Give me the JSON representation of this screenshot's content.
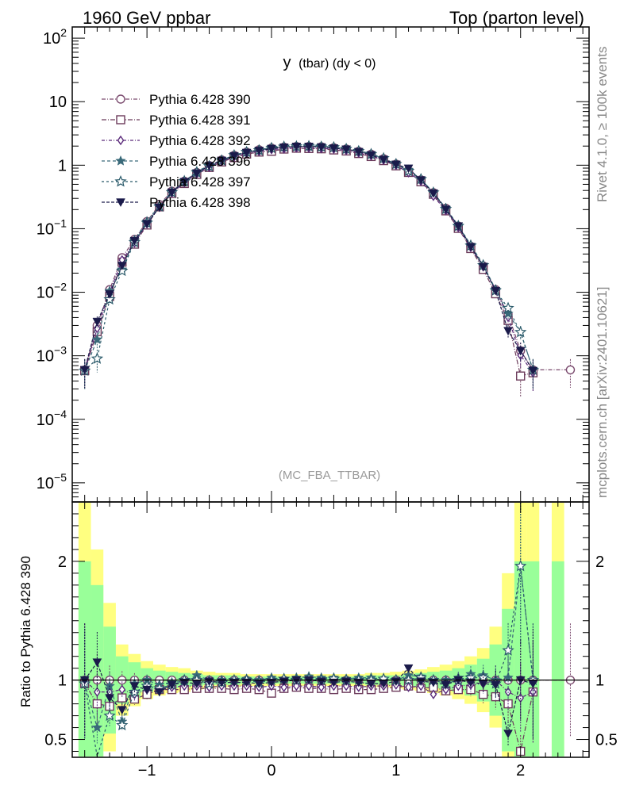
{
  "header": {
    "left_label": "1960 GeV ppbar",
    "right_label": "Top (parton level)"
  },
  "side_labels": {
    "rivet": "Rivet 4.1.0, ≥ 100k events",
    "source": "mcplots.cern.ch [arXiv:2401.10621]"
  },
  "chart_data": {
    "type": "line",
    "title": "y (tbar) (dy < 0)",
    "title_main": "y",
    "title_sub": "(tbar) (dy < 0)",
    "watermark": "(MC_FBA_TTBAR)",
    "ylabel_ratio": "Ratio to Pythia 6.428 390",
    "xlim": [
      -1.6,
      2.55
    ],
    "ylim": [
      5e-06,
      150
    ],
    "ratio_ylim": [
      0.35,
      2.5
    ],
    "yscale": "log",
    "xticks": [
      {
        "value": -1,
        "label": "−1"
      },
      {
        "value": 0,
        "label": "0"
      },
      {
        "value": 1,
        "label": "1"
      },
      {
        "value": 2,
        "label": "2"
      }
    ],
    "yticks": [
      {
        "value": 100,
        "base": "10",
        "exp": "2"
      },
      {
        "value": 10,
        "base": "10",
        "exp": ""
      },
      {
        "value": 1,
        "base": "1",
        "exp": ""
      },
      {
        "value": 0.1,
        "base": "10",
        "exp": "−1"
      },
      {
        "value": 0.01,
        "base": "10",
        "exp": "−2"
      },
      {
        "value": 0.001,
        "base": "10",
        "exp": "−3"
      },
      {
        "value": 0.0001,
        "base": "10",
        "exp": "−4"
      },
      {
        "value": 1e-05,
        "base": "10",
        "exp": "−5"
      }
    ],
    "ratio_yticks": [
      {
        "value": 2,
        "label": "2"
      },
      {
        "value": 1,
        "label": "1"
      },
      {
        "value": 0.5,
        "label": "0.5"
      }
    ],
    "x": [
      -1.5,
      -1.4,
      -1.3,
      -1.2,
      -1.1,
      -1.0,
      -0.9,
      -0.8,
      -0.7,
      -0.6,
      -0.5,
      -0.4,
      -0.3,
      -0.2,
      -0.1,
      0.0,
      0.1,
      0.2,
      0.3,
      0.4,
      0.5,
      0.6,
      0.7,
      0.8,
      0.9,
      1.0,
      1.1,
      1.2,
      1.3,
      1.4,
      1.5,
      1.6,
      1.7,
      1.8,
      1.9,
      2.0,
      2.1,
      2.2,
      2.3,
      2.4
    ],
    "reference_shape": [
      0.0006,
      0.003,
      0.011,
      0.035,
      0.068,
      0.13,
      0.24,
      0.39,
      0.56,
      0.77,
      0.99,
      1.21,
      1.43,
      1.61,
      1.75,
      1.86,
      1.93,
      1.97,
      1.97,
      1.95,
      1.89,
      1.8,
      1.66,
      1.49,
      1.27,
      1.04,
      0.81,
      0.59,
      0.37,
      0.21,
      0.11,
      0.053,
      0.026,
      0.011,
      0.0045,
      0.0012,
      0.0006,
      0.0006,
      0.0006,
      0.0006
    ],
    "uncertainty_bands": {
      "inner_color": "#99ff99",
      "outer_color": "#ffff80",
      "x": [
        -1.5,
        -1.4,
        -1.3,
        -1.2,
        -1.1,
        -1.0,
        -0.9,
        -0.8,
        -0.7,
        -0.6,
        -0.5,
        -0.4,
        -0.3,
        -0.2,
        -0.1,
        0.0,
        0.1,
        0.2,
        0.3,
        0.4,
        0.5,
        0.6,
        0.7,
        0.8,
        0.9,
        1.0,
        1.1,
        1.2,
        1.3,
        1.4,
        1.5,
        1.6,
        1.7,
        1.8,
        1.9,
        2.0,
        2.1,
        2.2,
        2.3,
        2.4
      ],
      "inner": [
        [
          0.25,
          2.0
        ],
        [
          0.3,
          1.8
        ],
        [
          0.55,
          1.45
        ],
        [
          0.8,
          1.2
        ],
        [
          0.85,
          1.15
        ],
        [
          0.9,
          1.1
        ],
        [
          0.92,
          1.08
        ],
        [
          0.93,
          1.07
        ],
        [
          0.94,
          1.06
        ],
        [
          0.95,
          1.05
        ],
        [
          0.96,
          1.04
        ],
        [
          0.96,
          1.04
        ],
        [
          0.96,
          1.04
        ],
        [
          0.97,
          1.03
        ],
        [
          0.97,
          1.03
        ],
        [
          0.97,
          1.03
        ],
        [
          0.97,
          1.03
        ],
        [
          0.97,
          1.03
        ],
        [
          0.97,
          1.03
        ],
        [
          0.97,
          1.03
        ],
        [
          0.97,
          1.03
        ],
        [
          0.97,
          1.03
        ],
        [
          0.97,
          1.03
        ],
        [
          0.96,
          1.04
        ],
        [
          0.96,
          1.04
        ],
        [
          0.96,
          1.04
        ],
        [
          0.95,
          1.05
        ],
        [
          0.94,
          1.06
        ],
        [
          0.93,
          1.07
        ],
        [
          0.92,
          1.08
        ],
        [
          0.9,
          1.1
        ],
        [
          0.87,
          1.13
        ],
        [
          0.82,
          1.18
        ],
        [
          0.7,
          1.3
        ],
        [
          0.4,
          1.6
        ],
        [
          0.25,
          2.0
        ],
        [
          0.25,
          2.0
        ],
        null,
        [
          0.25,
          2.0
        ],
        null
      ],
      "outer": [
        [
          0.25,
          2.5
        ],
        [
          0.25,
          2.1
        ],
        [
          0.4,
          1.65
        ],
        [
          0.7,
          1.3
        ],
        [
          0.78,
          1.22
        ],
        [
          0.84,
          1.16
        ],
        [
          0.87,
          1.13
        ],
        [
          0.89,
          1.11
        ],
        [
          0.9,
          1.1
        ],
        [
          0.92,
          1.08
        ],
        [
          0.93,
          1.07
        ],
        [
          0.94,
          1.06
        ],
        [
          0.94,
          1.06
        ],
        [
          0.95,
          1.05
        ],
        [
          0.95,
          1.05
        ],
        [
          0.95,
          1.05
        ],
        [
          0.95,
          1.05
        ],
        [
          0.95,
          1.05
        ],
        [
          0.95,
          1.05
        ],
        [
          0.95,
          1.05
        ],
        [
          0.95,
          1.05
        ],
        [
          0.95,
          1.05
        ],
        [
          0.95,
          1.05
        ],
        [
          0.94,
          1.06
        ],
        [
          0.94,
          1.06
        ],
        [
          0.93,
          1.07
        ],
        [
          0.92,
          1.08
        ],
        [
          0.91,
          1.09
        ],
        [
          0.89,
          1.11
        ],
        [
          0.87,
          1.13
        ],
        [
          0.84,
          1.16
        ],
        [
          0.8,
          1.2
        ],
        [
          0.73,
          1.27
        ],
        [
          0.6,
          1.45
        ],
        [
          0.3,
          1.9
        ],
        [
          0.25,
          2.5
        ],
        [
          0.25,
          2.5
        ],
        null,
        [
          0.25,
          2.5
        ],
        null
      ]
    },
    "series": [
      {
        "name": "Pythia 6.428 390",
        "color": "#7a4a6e",
        "marker": "circle-open",
        "dash": "5,2,1,2",
        "ratio": [
          1.0,
          1.0,
          1.0,
          1.0,
          1.0,
          1.0,
          1.0,
          1.0,
          1.0,
          1.0,
          1.0,
          1.0,
          1.0,
          1.0,
          1.0,
          1.0,
          1.0,
          1.0,
          1.0,
          1.0,
          1.0,
          1.0,
          1.0,
          1.0,
          1.0,
          1.0,
          1.0,
          1.0,
          1.0,
          1.0,
          1.0,
          1.0,
          1.0,
          1.0,
          1.0,
          1.0,
          1.0,
          null,
          null,
          1.0
        ]
      },
      {
        "name": "Pythia 6.428 391",
        "color": "#6b3a5a",
        "marker": "square-open",
        "dash": "6,2,1,2",
        "ratio": [
          0.97,
          0.8,
          0.78,
          0.85,
          0.84,
          0.88,
          0.92,
          0.92,
          0.92,
          0.93,
          0.93,
          0.93,
          0.92,
          0.93,
          0.92,
          0.89,
          0.93,
          0.94,
          0.93,
          0.93,
          0.92,
          0.93,
          0.92,
          0.92,
          0.93,
          0.94,
          0.95,
          0.93,
          0.94,
          0.91,
          0.92,
          0.92,
          0.88,
          0.86,
          0.8,
          0.4,
          0.9,
          null,
          null,
          null
        ]
      },
      {
        "name": "Pythia 6.428 392",
        "color": "#5a2a7a",
        "marker": "diamond-open",
        "dash": "4,2,1,2",
        "ratio": [
          1.0,
          0.9,
          0.9,
          0.92,
          0.88,
          0.92,
          0.93,
          0.94,
          0.95,
          0.95,
          0.94,
          0.95,
          0.95,
          0.95,
          0.94,
          0.95,
          0.94,
          0.95,
          0.95,
          0.94,
          0.95,
          0.95,
          0.94,
          0.95,
          0.95,
          0.96,
          0.94,
          0.95,
          0.88,
          0.92,
          0.95,
          0.96,
          0.97,
          1.0,
          0.9,
          0.85,
          0.9,
          null,
          null,
          null
        ]
      },
      {
        "name": "Pythia 6.428 396",
        "color": "#3a6a7a",
        "marker": "star-filled",
        "dash": "4,3",
        "ratio": [
          0.97,
          0.6,
          0.95,
          0.65,
          0.97,
          1.0,
          0.96,
          0.98,
          0.99,
          1.04,
          1.0,
          1.0,
          1.0,
          1.01,
          1.0,
          1.02,
          1.01,
          1.02,
          1.03,
          1.02,
          1.02,
          1.01,
          1.02,
          1.02,
          1.01,
          1.0,
          1.04,
          1.03,
          1.0,
          1.0,
          1.02,
          1.05,
          1.04,
          1.0,
          1.02,
          1.96,
          1.0,
          null,
          null,
          null
        ]
      },
      {
        "name": "Pythia 6.428 397",
        "color": "#2a5a6a",
        "marker": "star-open",
        "dash": "3,3",
        "ratio": [
          0.97,
          0.3,
          0.7,
          0.62,
          0.9,
          0.95,
          0.93,
          0.96,
          1.0,
          1.0,
          0.97,
          0.98,
          1.0,
          1.0,
          0.98,
          1.0,
          1.01,
          1.0,
          1.01,
          1.0,
          1.01,
          1.0,
          1.0,
          1.0,
          1.01,
          1.0,
          1.0,
          1.02,
          1.0,
          0.97,
          1.0,
          1.02,
          1.02,
          0.97,
          1.25,
          1.96,
          1.0,
          null,
          null,
          null
        ]
      },
      {
        "name": "Pythia 6.428 398",
        "color": "#1a1a4a",
        "marker": "triangle-down-filled",
        "dash": "4,2",
        "ratio": [
          1.0,
          1.15,
          0.85,
          0.75,
          0.95,
          0.92,
          0.9,
          0.96,
          0.98,
          0.97,
          0.99,
          0.98,
          0.98,
          0.98,
          0.97,
          0.98,
          0.99,
          1.0,
          1.0,
          0.99,
          0.98,
          0.99,
          0.98,
          0.97,
          0.97,
          0.99,
          1.1,
          0.99,
          0.98,
          0.96,
          1.0,
          0.98,
          0.97,
          0.96,
          0.55,
          1.0,
          0.97,
          null,
          null,
          null
        ]
      }
    ]
  }
}
